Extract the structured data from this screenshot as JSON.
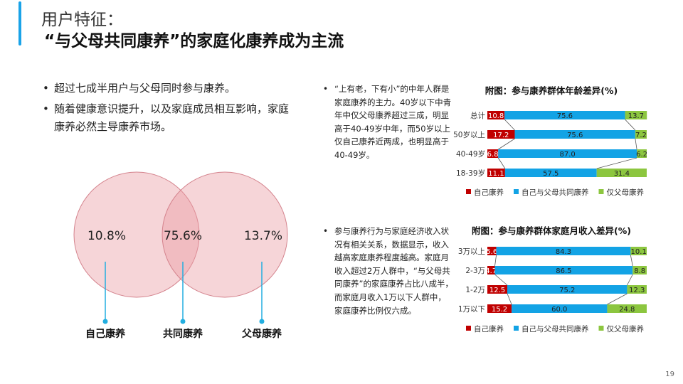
{
  "header": {
    "title_line1": "用户特征：",
    "title_line2": "“与父母共同康养”的家庭化康养成为主流"
  },
  "bullets": [
    "超过七成半用户与父母同时参与康养。",
    "随着健康意识提升，以及家庭成员相互影响，家庭康养必然主导康养市场。"
  ],
  "venn": {
    "left_value": "10.8%",
    "center_value": "75.6%",
    "right_value": "13.7%",
    "left_label": "自己康养",
    "center_label": "共同康养",
    "right_label": "父母康养"
  },
  "notes": [
    "“上有老，下有小”的中年人群是家庭康养的主力。40岁以下中青年中仅父母康养超过三成，明显高于40-49岁中年，而50岁以上仅自己康养近两成，也明显高于40-49岁。",
    "参与康养行为与家庭经济收入状况有相关关系，数据显示，收入越高家庭康养程度越高。家庭月收入超过2万人群中，“与父母共同康养”的家庭康养占比八成半，而家庭月收入1万以下人群中，家庭康养比例仅六成。"
  ],
  "page_number": "19",
  "colors": {
    "accent": "#1aa3e8",
    "self": "#c00000",
    "together": "#13a3e5",
    "parents": "#8cc63f",
    "venn_fill": "#e99aa2",
    "venn_stroke": "#d4838d",
    "leader": "#22aee0"
  },
  "chart_data": [
    {
      "type": "bar",
      "stacked": true,
      "orientation": "horizontal",
      "title": "附图：参与康养群体年龄差异(%)",
      "categories": [
        "总计",
        "50岁以上",
        "40-49岁",
        "18-39岁"
      ],
      "series": [
        {
          "name": "自己康养",
          "values": [
            10.8,
            17.2,
            6.8,
            11.1
          ]
        },
        {
          "name": "自己与父母共同康养",
          "values": [
            75.6,
            75.6,
            87.0,
            57.5
          ]
        },
        {
          "name": "仅父母康养",
          "values": [
            13.7,
            7.2,
            6.2,
            31.4
          ]
        }
      ],
      "xlim": [
        0,
        100
      ],
      "legend": "bottom"
    },
    {
      "type": "bar",
      "stacked": true,
      "orientation": "horizontal",
      "title": "附图：参与康养群体家庭月收入差异(%)",
      "categories": [
        "3万以上",
        "2-3万",
        "1-2万",
        "1万以下"
      ],
      "series": [
        {
          "name": "自己康养",
          "values": [
            5.6,
            4.7,
            12.5,
            15.2
          ]
        },
        {
          "name": "自己与父母共同康养",
          "values": [
            84.3,
            86.5,
            75.2,
            60.0
          ]
        },
        {
          "name": "仅父母康养",
          "values": [
            10.1,
            8.8,
            12.3,
            24.8
          ]
        }
      ],
      "xlim": [
        0,
        100
      ],
      "legend": "bottom"
    }
  ]
}
